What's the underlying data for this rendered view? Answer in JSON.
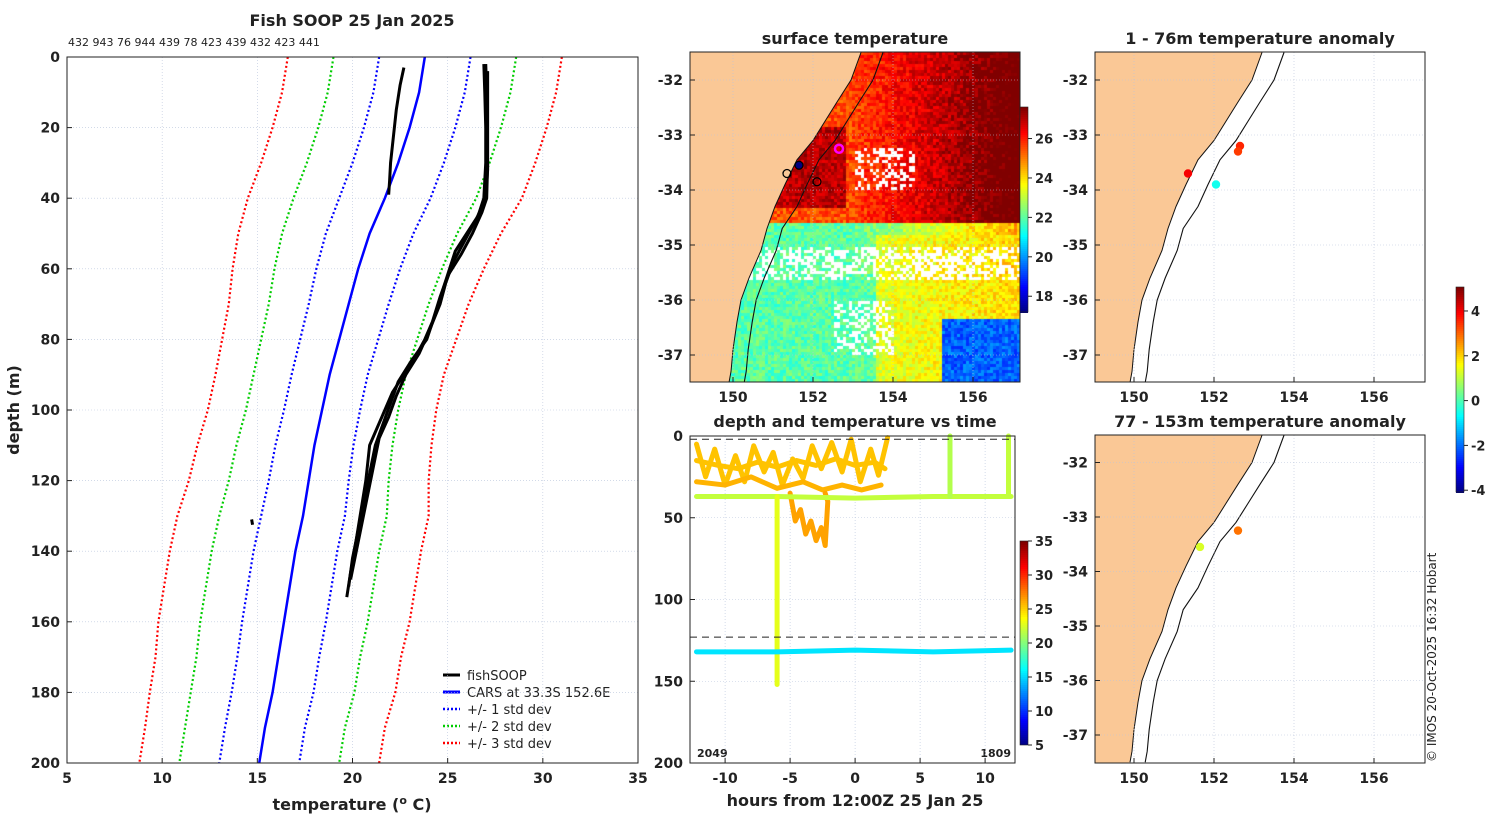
{
  "figure_header": {
    "profile_ids": "432 943 76 944 439 78 423 439 432 423 441",
    "credit": "© IMOS 20-Oct-2025 16:32 Hobart"
  },
  "colors": {
    "land": "#FAC896",
    "fishsoop": "#000000",
    "cars": "#0000FF",
    "std1": "#0000FF",
    "std2": "#00CC00",
    "std3": "#FF0000"
  },
  "chart_data": [
    {
      "type": "line",
      "title": "Fish SOOP 25 Jan 2025",
      "xlabel": "temperature (o C)",
      "xlabel_main": "temperature (",
      "xlabel_sup": "o",
      "xlabel_end": " C)",
      "ylabel": "depth (m)",
      "xlim": [
        5,
        35
      ],
      "ylim": [
        200,
        0
      ],
      "xticks": [
        "5",
        "10",
        "15",
        "20",
        "25",
        "30",
        "35"
      ],
      "yticks": [
        "0",
        "20",
        "40",
        "60",
        "80",
        "100",
        "120",
        "140",
        "160",
        "180",
        "200"
      ],
      "grid": true,
      "legend": {
        "placement": "bottom-right",
        "entries": [
          "fishSOOP",
          "CARS at 33.3S 152.6E",
          "+/- 1 std dev",
          "+/- 2 std dev",
          "+/- 3 std dev"
        ]
      },
      "cars": {
        "depth": [
          0,
          10,
          20,
          30,
          40,
          50,
          60,
          70,
          80,
          90,
          100,
          110,
          120,
          130,
          140,
          150,
          160,
          170,
          180,
          190,
          200
        ],
        "mean": [
          23.8,
          23.5,
          23.0,
          22.4,
          21.7,
          20.9,
          20.3,
          19.8,
          19.3,
          18.8,
          18.4,
          18.0,
          17.7,
          17.4,
          17.0,
          16.7,
          16.4,
          16.1,
          15.8,
          15.4,
          15.1
        ],
        "std": [
          2.4,
          2.4,
          2.4,
          2.4,
          2.4,
          2.3,
          2.2,
          2.1,
          2.05,
          2.0,
          2.0,
          2.05,
          2.1,
          2.2,
          2.2,
          2.2,
          2.2,
          2.15,
          2.15,
          2.1,
          2.1
        ]
      },
      "fishsoop_profiles": [
        {
          "depth": [
            3,
            8,
            15,
            20,
            25,
            30,
            35,
            39
          ],
          "temp": [
            22.7,
            22.5,
            22.3,
            22.2,
            22.1,
            22.0,
            21.95,
            21.9
          ]
        },
        {
          "depth": [
            2,
            10,
            20,
            30,
            40,
            44,
            50,
            56,
            62,
            68,
            75,
            80,
            85,
            90,
            95,
            100,
            105,
            110,
            120,
            130,
            140,
            146,
            153
          ],
          "temp": [
            27.0,
            27.05,
            27.05,
            27.1,
            27.05,
            26.8,
            26.3,
            25.7,
            25.0,
            24.6,
            24.2,
            23.8,
            23.3,
            22.7,
            22.1,
            21.7,
            21.3,
            20.9,
            20.7,
            20.4,
            20.1,
            19.9,
            19.7
          ]
        },
        {
          "depth": [
            2,
            10,
            20,
            30,
            40,
            45,
            50,
            55,
            60,
            65,
            72,
            80,
            86,
            92,
            98,
            104,
            110,
            118,
            126,
            134,
            142,
            150
          ],
          "temp": [
            26.9,
            26.95,
            27.0,
            27.0,
            26.9,
            26.6,
            26.0,
            25.4,
            25.1,
            24.8,
            24.4,
            23.9,
            23.1,
            22.4,
            22.0,
            21.6,
            21.2,
            20.9,
            20.6,
            20.3,
            20.0,
            19.8
          ]
        },
        {
          "depth": [
            4,
            12,
            22,
            32,
            40,
            46,
            52,
            58,
            64,
            70,
            78,
            84,
            90,
            96,
            102,
            108,
            116,
            124,
            132,
            140,
            148
          ],
          "temp": [
            27.1,
            27.1,
            27.1,
            27.1,
            27.0,
            26.5,
            25.9,
            25.3,
            24.9,
            24.6,
            24.0,
            23.5,
            22.8,
            22.3,
            21.9,
            21.4,
            21.1,
            20.8,
            20.5,
            20.2,
            19.9
          ]
        },
        {
          "depth": [
            131,
            132.5
          ],
          "temp": [
            14.7,
            14.75
          ]
        }
      ]
    },
    {
      "type": "heatmap",
      "title": "surface temperature",
      "xticks": [
        "150",
        "152",
        "154",
        "156"
      ],
      "yticks": [
        "-32",
        "-33",
        "-34",
        "-35",
        "-36",
        "-37"
      ],
      "colorbar": {
        "range": [
          17.2,
          27.6
        ],
        "ticks": [
          "18",
          "20",
          "22",
          "24",
          "26"
        ]
      },
      "markers": [
        {
          "lon": 151.65,
          "lat": -33.55,
          "color": "#000080",
          "ring": "#000000"
        },
        {
          "lon": 151.35,
          "lat": -33.7,
          "color": "none",
          "ring": "#000000"
        },
        {
          "lon": 152.1,
          "lat": -33.85,
          "color": "none",
          "ring": "#000000"
        },
        {
          "lon": 152.65,
          "lat": -33.25,
          "color": "none",
          "ring": "#FF00FF"
        }
      ]
    },
    {
      "type": "scatter",
      "title": "depth and temperature vs time",
      "xlabel": "hours from 12:00Z 25 Jan 25",
      "xlim": [
        -12.7,
        12.3
      ],
      "ylim": [
        200,
        0
      ],
      "xticks": [
        "-10",
        "-5",
        "0",
        "5",
        "10"
      ],
      "yticks": [
        "0",
        "50",
        "100",
        "150",
        "200"
      ],
      "dashed_depths": [
        2,
        123
      ],
      "corner_labels": {
        "left": "2049",
        "right": "1809"
      },
      "colorbar": {
        "range": [
          5,
          35
        ],
        "ticks": [
          "5",
          "10",
          "15",
          "20",
          "25",
          "30",
          "35"
        ]
      },
      "tracks": [
        {
          "temp": 25.5,
          "pts": [
            [
              -12.2,
              5
            ],
            [
              -11.5,
              25
            ],
            [
              -10.8,
              8
            ],
            [
              -10,
              30
            ],
            [
              -9.2,
              12
            ],
            [
              -8.5,
              28
            ],
            [
              -7.8,
              6
            ],
            [
              -7,
              22
            ],
            [
              -6.3,
              10
            ],
            [
              -5.6,
              30
            ],
            [
              -4.8,
              14
            ],
            [
              -4,
              26
            ],
            [
              -3.3,
              6
            ],
            [
              -2.6,
              20
            ],
            [
              -1.8,
              4
            ],
            [
              -1.0,
              22
            ],
            [
              -0.3,
              2
            ],
            [
              0.4,
              28
            ],
            [
              1.2,
              8
            ],
            [
              1.8,
              24
            ],
            [
              2.5,
              1
            ]
          ]
        },
        {
          "temp": 25.5,
          "pts": [
            [
              -12.2,
              15
            ],
            [
              -10.5,
              18
            ],
            [
              -9,
              20
            ],
            [
              -7.5,
              16
            ],
            [
              -6,
              19
            ],
            [
              -4.5,
              15
            ],
            [
              -3,
              18
            ],
            [
              -1.5,
              14
            ],
            [
              0,
              18
            ],
            [
              1.5,
              16
            ],
            [
              2.3,
              20
            ]
          ]
        },
        {
          "temp": 26.0,
          "pts": [
            [
              -12.2,
              28
            ],
            [
              -10,
              30
            ],
            [
              -8,
              25
            ],
            [
              -6,
              32
            ],
            [
              -4,
              28
            ],
            [
              -2.5,
              33
            ],
            [
              -1,
              30
            ],
            [
              0.5,
              33
            ],
            [
              2,
              30
            ]
          ]
        },
        {
          "temp": 26.5,
          "pts": [
            [
              -5,
              35
            ],
            [
              -4.6,
              52
            ],
            [
              -4.2,
              45
            ],
            [
              -3.8,
              60
            ],
            [
              -3.4,
              52
            ],
            [
              -3.0,
              64
            ],
            [
              -2.6,
              56
            ],
            [
              -2.3,
              67
            ],
            [
              -2.1,
              40
            ],
            [
              -2.3,
              35
            ]
          ]
        },
        {
          "temp": 22.0,
          "pts": [
            [
              -12.2,
              37
            ],
            [
              -6,
              37
            ],
            [
              0,
              38
            ],
            [
              6,
              37
            ],
            [
              12,
              37
            ]
          ]
        },
        {
          "temp": 23.0,
          "pts": [
            [
              -6,
              37
            ],
            [
              -6,
              60
            ],
            [
              -6,
              90
            ],
            [
              -6,
              110
            ],
            [
              -6,
              152
            ]
          ]
        },
        {
          "temp": 21.5,
          "pts": [
            [
              7.3,
              0
            ],
            [
              7.3,
              37
            ]
          ]
        },
        {
          "temp": 22.0,
          "pts": [
            [
              11.8,
              0
            ],
            [
              11.8,
              37
            ]
          ]
        },
        {
          "temp": 15.5,
          "pts": [
            [
              -12.2,
              132
            ],
            [
              -6,
              132
            ],
            [
              0,
              131
            ],
            [
              6,
              132
            ],
            [
              12,
              131
            ]
          ]
        }
      ]
    },
    {
      "type": "scatter",
      "title": "1 - 76m temperature anomaly",
      "xticks": [
        "150",
        "152",
        "154",
        "156"
      ],
      "yticks": [
        "-32",
        "-33",
        "-34",
        "-35",
        "-36",
        "-37"
      ],
      "points": [
        {
          "lon": 152.65,
          "lat": -33.2,
          "anom": 3.6
        },
        {
          "lon": 152.6,
          "lat": -33.3,
          "anom": 3.4
        },
        {
          "lon": 151.35,
          "lat": -33.7,
          "anom": 4.0
        },
        {
          "lon": 152.05,
          "lat": -33.9,
          "anom": -0.5
        }
      ]
    },
    {
      "type": "scatter",
      "title": "77 - 153m temperature anomaly",
      "xticks": [
        "150",
        "152",
        "154",
        "156"
      ],
      "yticks": [
        "-32",
        "-33",
        "-34",
        "-35",
        "-36",
        "-37"
      ],
      "points": [
        {
          "lon": 151.65,
          "lat": -33.55,
          "anom": 1.3
        },
        {
          "lon": 152.6,
          "lat": -33.25,
          "anom": 2.9
        }
      ],
      "colorbar": {
        "range": [
          -4.08,
          5.07
        ],
        "ticks": [
          "-4",
          "-2",
          "0",
          "2",
          "4"
        ]
      }
    }
  ],
  "coastline": [
    [
      153.2,
      -31.5
    ],
    [
      152.95,
      -32.0
    ],
    [
      152.6,
      -32.4
    ],
    [
      152.3,
      -32.75
    ],
    [
      152.0,
      -33.1
    ],
    [
      151.6,
      -33.45
    ],
    [
      151.3,
      -33.9
    ],
    [
      151.05,
      -34.3
    ],
    [
      150.85,
      -34.7
    ],
    [
      150.7,
      -35.1
    ],
    [
      150.4,
      -35.6
    ],
    [
      150.2,
      -36.0
    ],
    [
      150.1,
      -36.4
    ],
    [
      150.0,
      -36.9
    ],
    [
      149.95,
      -37.3
    ],
    [
      149.9,
      -37.5
    ]
  ]
}
